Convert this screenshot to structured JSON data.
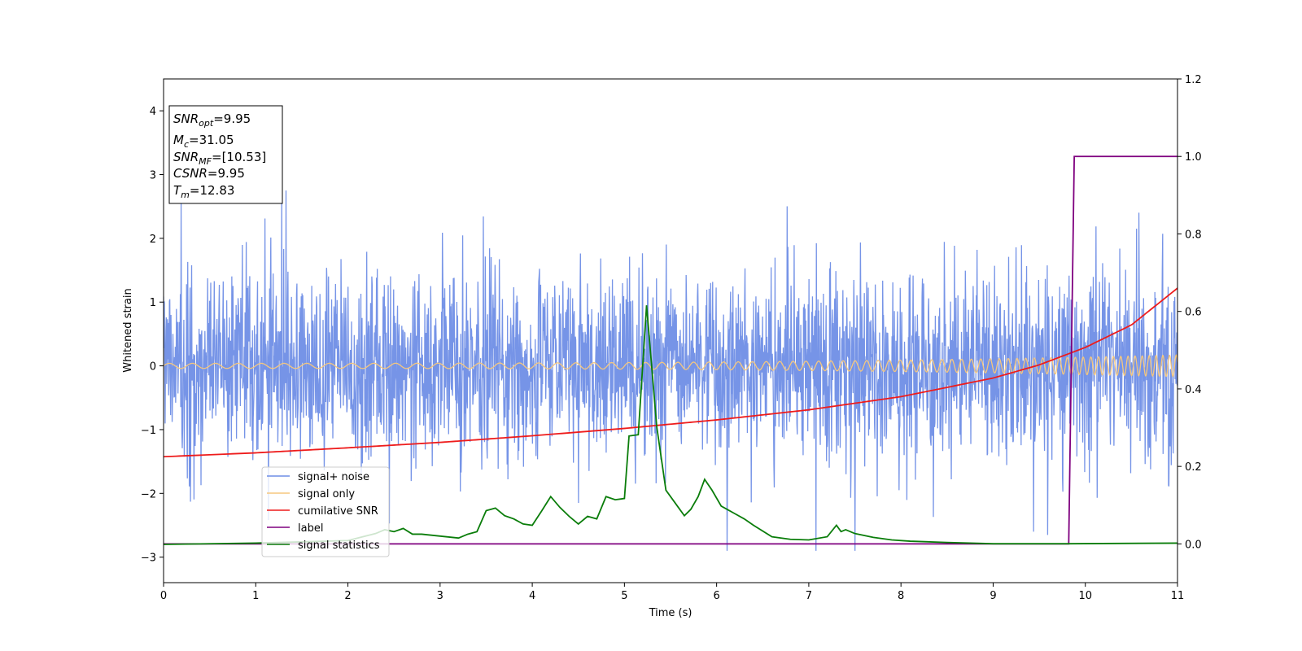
{
  "chart_data": {
    "type": "line",
    "xlabel": "Time (s)",
    "ylabel": "Whitened strain",
    "xlim": [
      0,
      11
    ],
    "ylim": [
      -3.4,
      4.5
    ],
    "y2lim": [
      -0.1,
      1.2
    ],
    "x_ticks": [
      "0",
      "1",
      "2",
      "3",
      "4",
      "5",
      "6",
      "7",
      "8",
      "9",
      "10",
      "11"
    ],
    "y_ticks": [
      "−3",
      "−2",
      "−1",
      "0",
      "1",
      "2",
      "3",
      "4"
    ],
    "y2_ticks": [
      "0.0",
      "0.2",
      "0.4",
      "0.6",
      "0.8",
      "1.0",
      "1.2"
    ],
    "info_box": {
      "snr_opt": {
        "base": "SNR",
        "sub": "opt",
        "rest": "=9.95"
      },
      "mc": {
        "base": "M",
        "sub": "c",
        "rest": "=31.05"
      },
      "snr_mf": {
        "base": "SNR",
        "sub": "MF",
        "rest": "=[10.53]"
      },
      "csnr": {
        "base": "CSNR",
        "sub": "",
        "rest": "=9.95"
      },
      "tm": {
        "base": "T",
        "sub": "m",
        "rest": "=12.83"
      }
    },
    "legend_position": "lower-left",
    "series": [
      {
        "name": "signal+ noise",
        "axis": "left",
        "color": "#6f8ee6",
        "kind": "noise",
        "band_min": -2.2,
        "band_max": 2.4,
        "noise_std": 0.75,
        "seed": 7
      },
      {
        "name": "signal only",
        "axis": "left",
        "color": "#f5c77e",
        "kind": "chirp",
        "amp_start": 0.04,
        "amp_end": 0.17,
        "freq_start": 4.0,
        "freq_end": 14.0
      },
      {
        "name": "cumilative SNR",
        "axis": "right",
        "color": "#ee1c1c",
        "x": [
          0,
          1,
          2,
          3,
          4,
          5,
          6,
          7,
          8,
          9,
          9.5,
          10,
          10.5,
          11
        ],
        "values": [
          0.225,
          0.235,
          0.248,
          0.262,
          0.279,
          0.298,
          0.32,
          0.346,
          0.38,
          0.428,
          0.462,
          0.507,
          0.565,
          0.66
        ]
      },
      {
        "name": "label",
        "axis": "right",
        "color": "#7f007f",
        "x": [
          0,
          9.82,
          9.88,
          11
        ],
        "values": [
          0.0,
          0.0,
          1.0,
          1.0
        ]
      },
      {
        "name": "signal statistics",
        "axis": "left",
        "color": "#0a7d0a",
        "x": [
          0,
          1,
          2,
          2.3,
          2.4,
          2.5,
          2.6,
          2.7,
          2.8,
          3.0,
          3.2,
          3.3,
          3.4,
          3.5,
          3.6,
          3.7,
          3.8,
          3.9,
          4.0,
          4.1,
          4.2,
          4.3,
          4.4,
          4.5,
          4.6,
          4.7,
          4.8,
          4.9,
          5.0,
          5.05,
          5.15,
          5.24,
          5.35,
          5.45,
          5.55,
          5.65,
          5.72,
          5.8,
          5.87,
          5.95,
          6.05,
          6.2,
          6.3,
          6.4,
          6.6,
          6.8,
          7.0,
          7.2,
          7.3,
          7.35,
          7.4,
          7.5,
          7.7,
          7.9,
          8.1,
          8.5,
          9.0,
          9.8,
          11
        ],
        "values": [
          -2.8,
          -2.78,
          -2.74,
          -2.63,
          -2.57,
          -2.6,
          -2.55,
          -2.64,
          -2.64,
          -2.67,
          -2.7,
          -2.64,
          -2.6,
          -2.27,
          -2.23,
          -2.35,
          -2.4,
          -2.48,
          -2.5,
          -2.28,
          -2.05,
          -2.22,
          -2.36,
          -2.48,
          -2.36,
          -2.4,
          -2.05,
          -2.1,
          -2.08,
          -1.1,
          -1.08,
          0.95,
          -0.95,
          -1.95,
          -2.15,
          -2.35,
          -2.25,
          -2.05,
          -1.78,
          -1.95,
          -2.2,
          -2.32,
          -2.4,
          -2.5,
          -2.68,
          -2.72,
          -2.73,
          -2.68,
          -2.5,
          -2.6,
          -2.57,
          -2.63,
          -2.69,
          -2.73,
          -2.75,
          -2.77,
          -2.79,
          -2.79,
          -2.78
        ]
      }
    ]
  }
}
